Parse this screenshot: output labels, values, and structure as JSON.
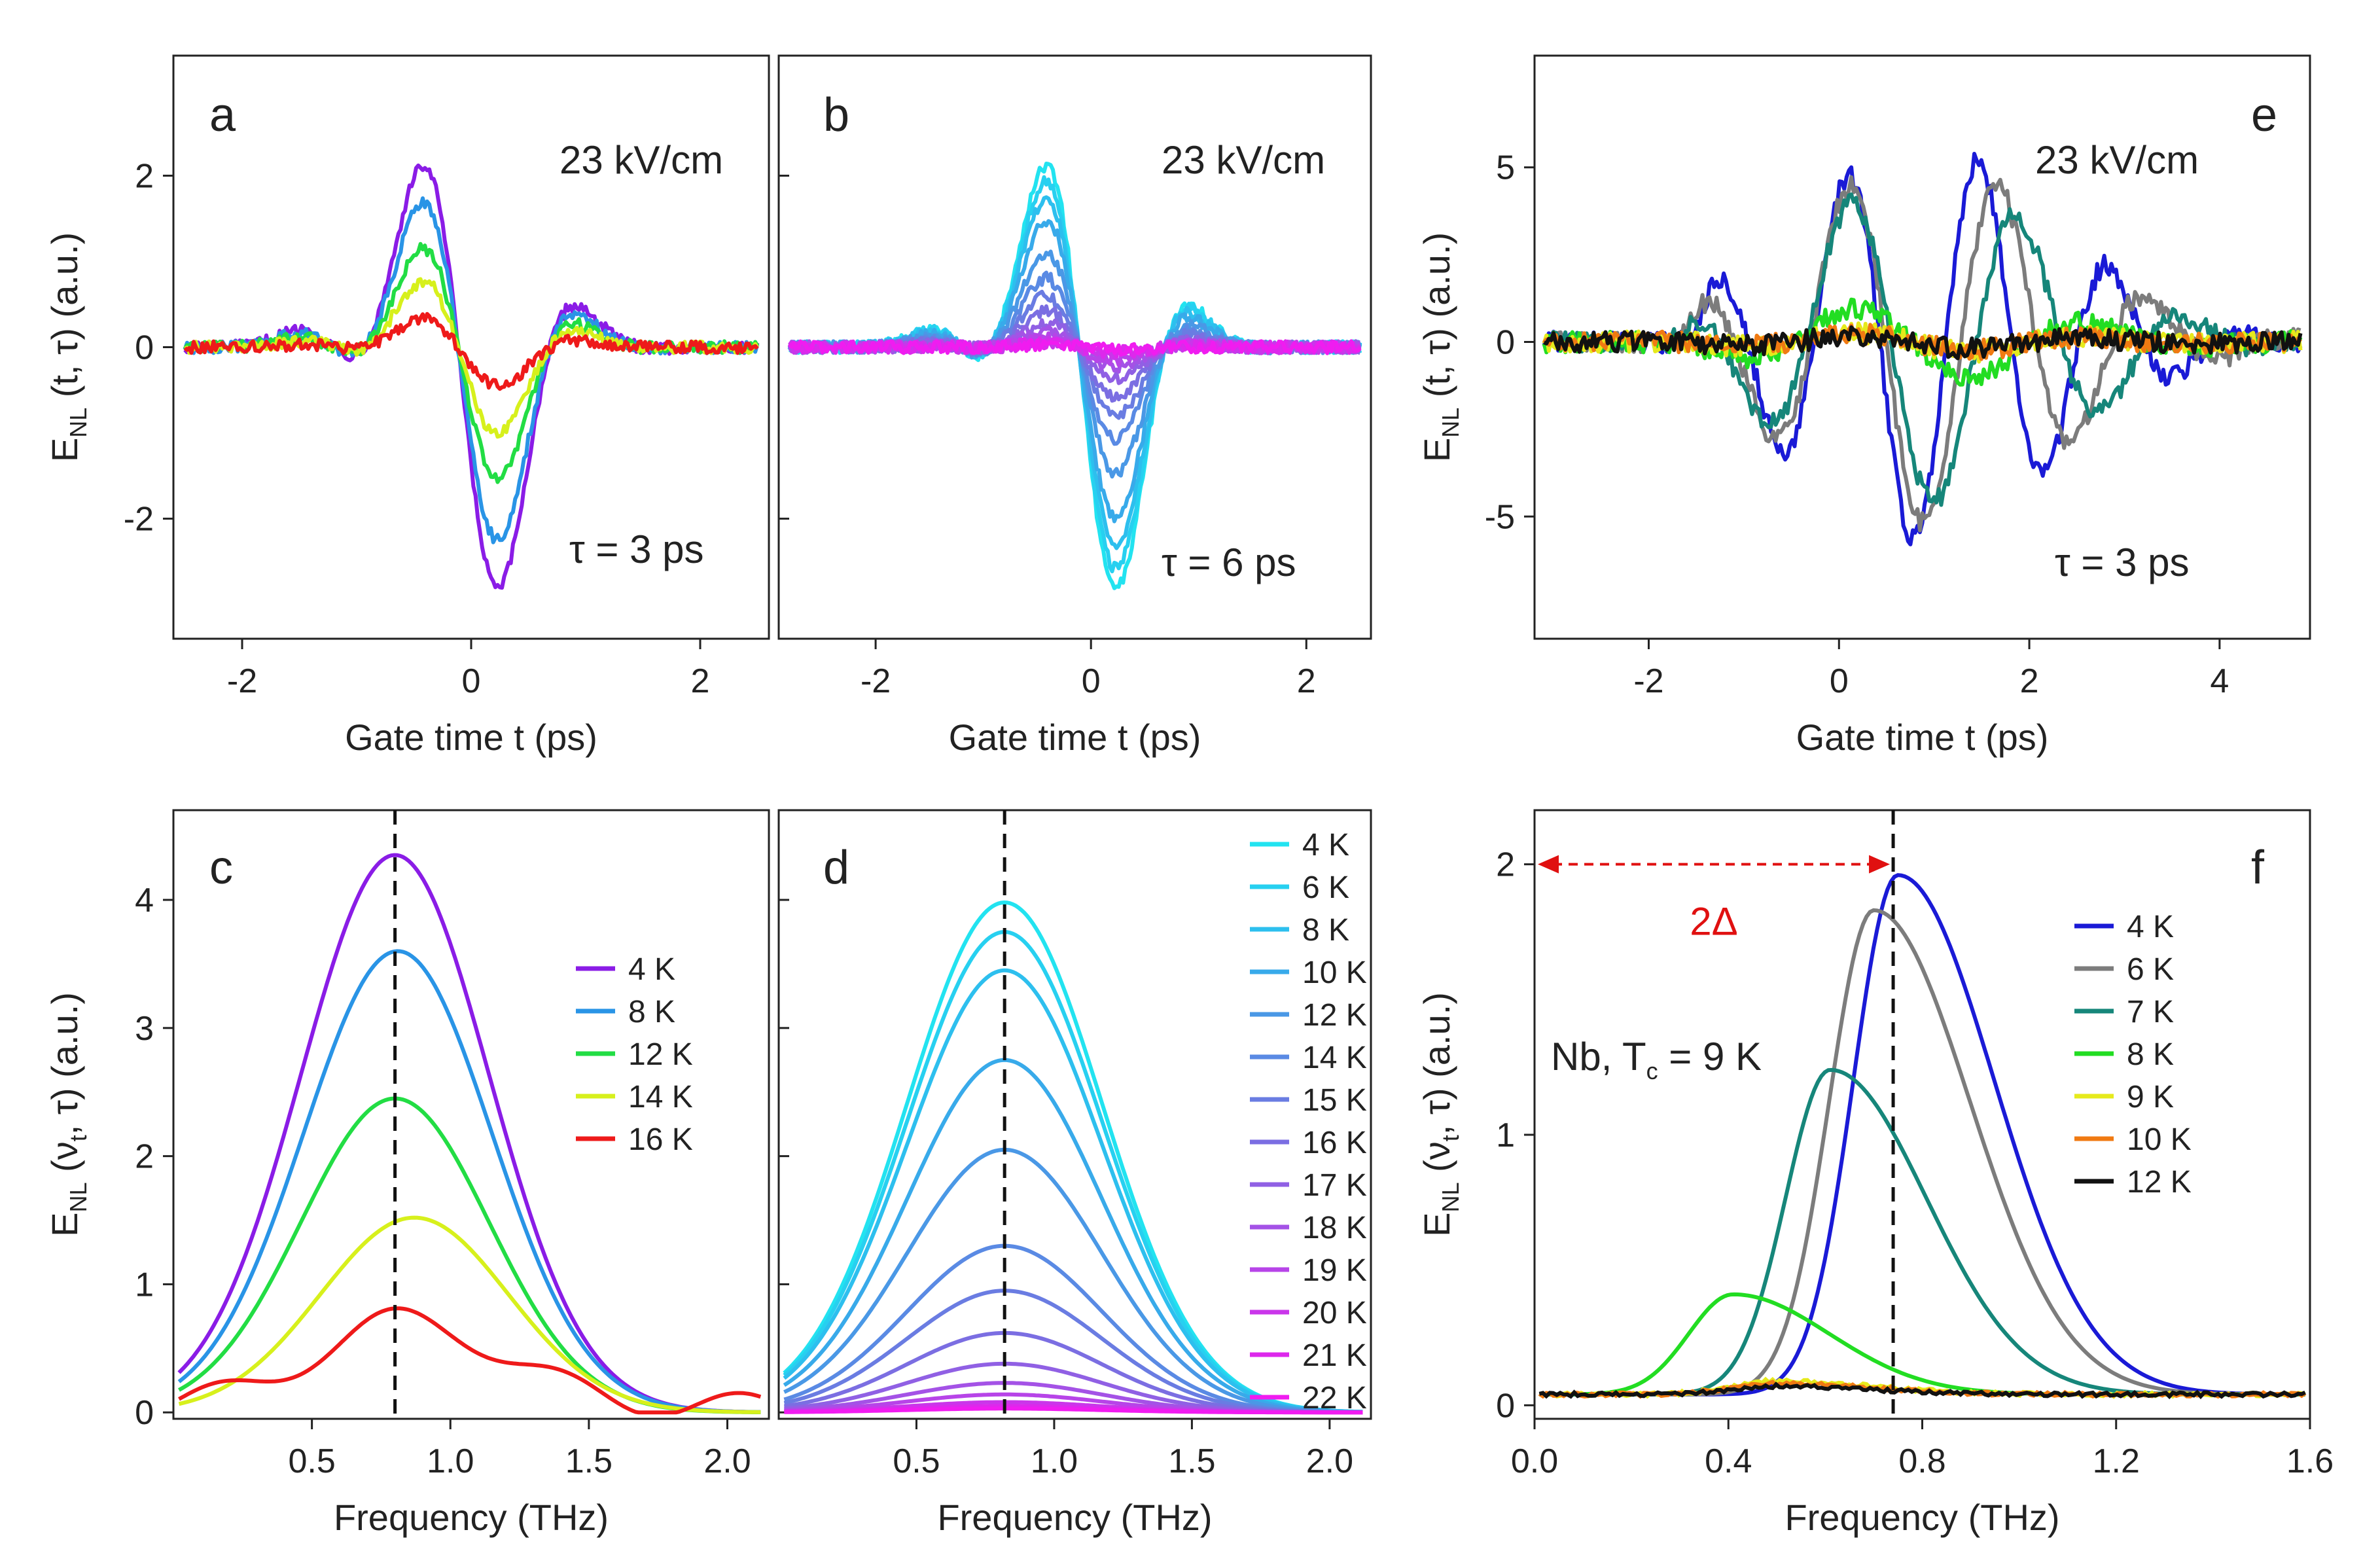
{
  "chart_data": [
    {
      "panel": "a",
      "type": "line",
      "xlabel": "Gate time t (ps)",
      "ylabel": "E_NL (t, τ) (a.u.)",
      "xlim": [
        -2.6,
        2.6
      ],
      "ylim": [
        -3.4,
        3.4
      ],
      "xticks": [
        -2,
        0,
        2
      ],
      "yticks": [
        -2,
        0,
        2
      ],
      "annotations": [
        "23 kV/cm",
        "τ  = 3 ps"
      ],
      "series": [
        {
          "name": "4 K",
          "color": "#8a1ce6",
          "amp": 1.0
        },
        {
          "name": "8 K",
          "color": "#2994e6",
          "amp": 0.8
        },
        {
          "name": "12 K",
          "color": "#22dd44",
          "amp": 0.54
        },
        {
          "name": "14 K",
          "color": "#d7f01c",
          "amp": 0.36
        },
        {
          "name": "16 K",
          "color": "#ee1a1a",
          "amp": 0.16
        }
      ]
    },
    {
      "panel": "b",
      "type": "line",
      "xlabel": "Gate time t (ps)",
      "ylabel": "",
      "xlim": [
        -2.9,
        2.6
      ],
      "ylim": [
        -3.4,
        3.4
      ],
      "xticks": [
        -2,
        0,
        2
      ],
      "yticks": [],
      "annotations": [
        "23 kV/cm",
        "τ  = 6 ps"
      ],
      "series": [
        {
          "name": "4 K",
          "color": "#22e3f0",
          "amp": 1.0
        },
        {
          "name": "6 K",
          "color": "#27d0f0",
          "amp": 0.92
        },
        {
          "name": "8 K",
          "color": "#2dbfee",
          "amp": 0.82
        },
        {
          "name": "10 K",
          "color": "#38aaea",
          "amp": 0.7
        },
        {
          "name": "12 K",
          "color": "#4a98e6",
          "amp": 0.52
        },
        {
          "name": "14 K",
          "color": "#5a8ae4",
          "amp": 0.38
        },
        {
          "name": "15 K",
          "color": "#6a7ce2",
          "amp": 0.28
        },
        {
          "name": "16 K",
          "color": "#7b6ee2",
          "amp": 0.2
        },
        {
          "name": "17 K",
          "color": "#9060e4",
          "amp": 0.13
        },
        {
          "name": "18 K",
          "color": "#a452e6",
          "amp": 0.08
        },
        {
          "name": "19 K",
          "color": "#b744e8",
          "amp": 0.05
        },
        {
          "name": "20 K",
          "color": "#ca36ea",
          "amp": 0.03
        },
        {
          "name": "21 K",
          "color": "#dd28ec",
          "amp": 0.02
        },
        {
          "name": "22 K",
          "color": "#f01cf0",
          "amp": 0.01
        }
      ]
    },
    {
      "panel": "e",
      "type": "line",
      "xlabel": "Gate time t (ps)",
      "ylabel": "E_NL (t, τ) (a.u.)",
      "xlim": [
        -3.2,
        4.95
      ],
      "ylim": [
        -8.5,
        8.2
      ],
      "xticks": [
        -2,
        0,
        2,
        4
      ],
      "yticks": [
        -5,
        0,
        5
      ],
      "annotations": [
        "23 kV/cm",
        "τ  = 3 ps"
      ],
      "series": [
        {
          "name": "4 K",
          "color": "#1a1ad6",
          "amp": 5.6,
          "freq": 0.72
        },
        {
          "name": "6 K",
          "color": "#7c7c7c",
          "amp": 5.2,
          "freq": 0.63
        },
        {
          "name": "7 K",
          "color": "#16867a",
          "amp": 4.6,
          "freq": 0.56
        },
        {
          "name": "8 K",
          "color": "#22dd22",
          "amp": 1.1,
          "freq": 0.4
        },
        {
          "name": "9 K",
          "color": "#e6ea1c",
          "amp": 0.3,
          "freq": 0.4
        },
        {
          "name": "10 K",
          "color": "#f07a12",
          "amp": 0.25,
          "freq": 0.4
        },
        {
          "name": "12 K",
          "color": "#111111",
          "amp": 0.2,
          "freq": 0.4
        }
      ]
    },
    {
      "panel": "c",
      "type": "line",
      "xlabel": "Frequency (THz)",
      "ylabel": "E_NL (ν_t, τ) (a.u.)",
      "xlim": [
        0.0,
        2.15
      ],
      "ylim": [
        -0.05,
        4.7
      ],
      "xticks": [
        0.5,
        1.0,
        1.5,
        2.0
      ],
      "xticklabels": [
        "0.5",
        "1.0",
        "1.5",
        "2.0"
      ],
      "yticks": [
        0,
        1,
        2,
        3,
        4
      ],
      "dashed_line_x": 0.8,
      "series": [
        {
          "name": "4 K",
          "color": "#8a1ce6",
          "peak": 4.35,
          "center": 0.8
        },
        {
          "name": "8 K",
          "color": "#2994e6",
          "peak": 3.6,
          "center": 0.81
        },
        {
          "name": "12 K",
          "color": "#22dd44",
          "peak": 2.45,
          "center": 0.8
        },
        {
          "name": "14 K",
          "color": "#d7f01c",
          "peak": 1.52,
          "center": 0.87
        },
        {
          "name": "16 K",
          "color": "#ee1a1a",
          "peak": 0.67,
          "center": 0.85
        }
      ]
    },
    {
      "panel": "d",
      "type": "line",
      "xlabel": "Frequency (THz)",
      "ylabel": "",
      "xlim": [
        0.0,
        2.15
      ],
      "ylim": [
        -0.05,
        4.7
      ],
      "xticks": [
        0.5,
        1.0,
        1.5,
        2.0
      ],
      "xticklabels": [
        "0.5",
        "1.0",
        "1.5",
        "2.0"
      ],
      "yticks": [],
      "dashed_line_x": 0.82,
      "series": [
        {
          "name": "4 K",
          "color": "#22e3f0",
          "peak": 3.98
        },
        {
          "name": "6 K",
          "color": "#27d0f0",
          "peak": 3.75
        },
        {
          "name": "8 K",
          "color": "#2dbfee",
          "peak": 3.45
        },
        {
          "name": "10 K",
          "color": "#38aaea",
          "peak": 2.75
        },
        {
          "name": "12 K",
          "color": "#4a98e6",
          "peak": 2.05
        },
        {
          "name": "14 K",
          "color": "#5a8ae4",
          "peak": 1.3
        },
        {
          "name": "15 K",
          "color": "#6a7ce2",
          "peak": 0.95
        },
        {
          "name": "16 K",
          "color": "#7b6ee2",
          "peak": 0.62
        },
        {
          "name": "17 K",
          "color": "#9060e4",
          "peak": 0.38
        },
        {
          "name": "18 K",
          "color": "#a452e6",
          "peak": 0.23
        },
        {
          "name": "19 K",
          "color": "#b744e8",
          "peak": 0.14
        },
        {
          "name": "20 K",
          "color": "#ca36ea",
          "peak": 0.08
        },
        {
          "name": "21 K",
          "color": "#dd28ec",
          "peak": 0.05
        },
        {
          "name": "22 K",
          "color": "#f01cf0",
          "peak": 0.03
        }
      ]
    },
    {
      "panel": "f",
      "type": "line",
      "xlabel": "Frequency (THz)",
      "ylabel": "E_NL (ν_t, τ) (a.u.)",
      "xlim": [
        0.0,
        1.6
      ],
      "ylim": [
        -0.05,
        2.2
      ],
      "xticks": [
        0.0,
        0.4,
        0.8,
        1.2,
        1.6
      ],
      "xticklabels": [
        "0.0",
        "0.4",
        "0.8",
        "1.2",
        "1.6"
      ],
      "yticks": [
        0,
        1,
        2
      ],
      "dashed_line_x": 0.74,
      "gap_arrow": {
        "from": 0.0,
        "to": 0.74,
        "y": 2.0,
        "label": "2Δ",
        "color": "#e01010"
      },
      "annotation": "Nb, T_c = 9 K",
      "series": [
        {
          "name": "4 K",
          "color": "#1a1ad6",
          "peak": 1.92,
          "center": 0.75
        },
        {
          "name": "6 K",
          "color": "#7c7c7c",
          "peak": 1.79,
          "center": 0.7
        },
        {
          "name": "7 K",
          "color": "#16867a",
          "peak": 1.2,
          "center": 0.61
        },
        {
          "name": "8 K",
          "color": "#22dd22",
          "peak": 0.37,
          "center": 0.41
        },
        {
          "name": "9 K",
          "color": "#e6ea1c",
          "peak": 0.05,
          "center": 0.5
        },
        {
          "name": "10 K",
          "color": "#f07a12",
          "peak": 0.04,
          "center": 0.5
        },
        {
          "name": "12 K",
          "color": "#111111",
          "peak": 0.03,
          "center": 0.5
        }
      ]
    }
  ],
  "labels": {
    "a": "a",
    "b": "b",
    "c": "c",
    "d": "d",
    "e": "e",
    "f": "f",
    "field": "23 kV/cm",
    "tau3": "τ  = 3 ps",
    "tau6": "τ  = 6 ps",
    "gate_time": "Gate time t (ps)",
    "frequency": "Frequency (THz)",
    "ylabel_main_E": "E",
    "ylabel_main_sub": "NL",
    "ylabel_time_rest": " (t, τ) (a.u.)",
    "ylabel_freq_rest": " (ν",
    "ylabel_freq_sub_t": "t",
    "ylabel_freq_tail": ", τ) (a.u.)",
    "gap": "2Δ",
    "nb_prefix": "Nb, T",
    "nb_sub": "c",
    "nb_suffix": " = 9 K"
  }
}
